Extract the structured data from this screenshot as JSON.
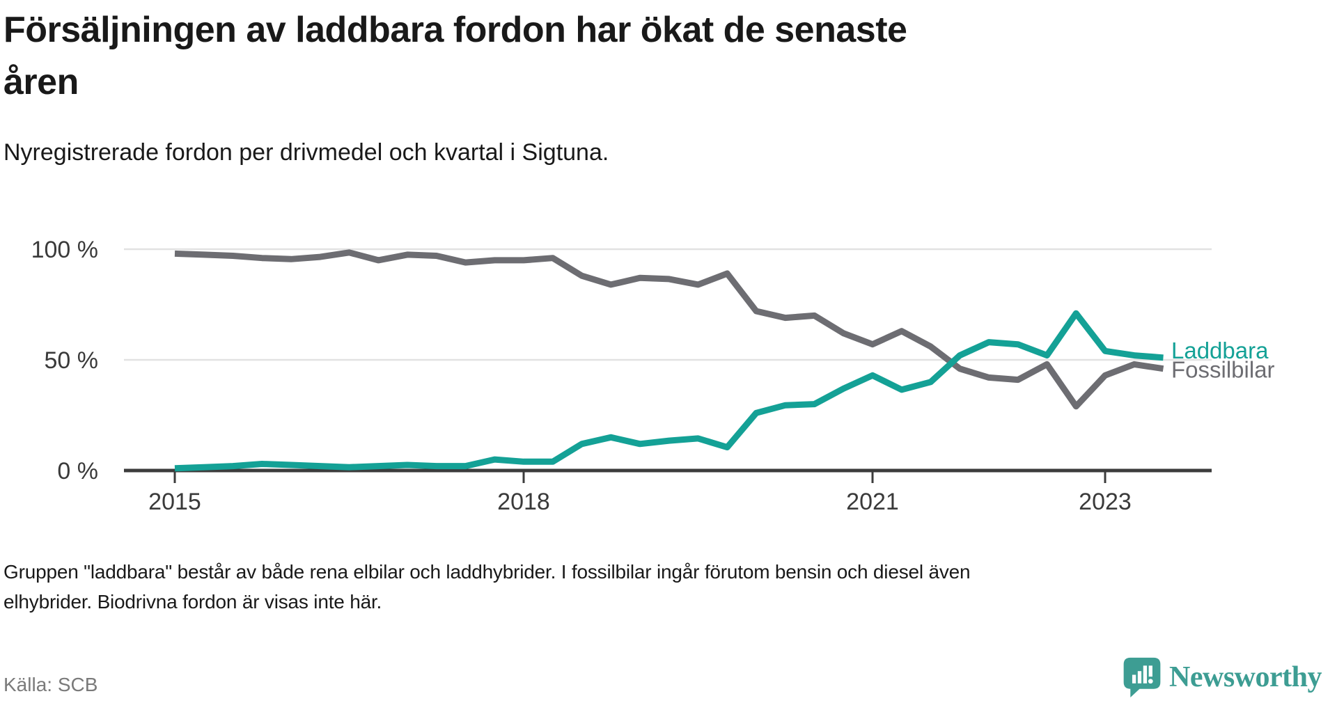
{
  "title_lines": [
    "Försäljningen av laddbara fordon har ökat de senaste",
    "åren"
  ],
  "subtitle": "Nyregistrerade fordon per drivmedel och kvartal i Sigtuna.",
  "footnote_lines": [
    "Gruppen \"laddbara\" består av både rena elbilar och laddhybrider. I fossilbilar ingår förutom bensin och diesel även",
    "elhybrider. Biodrivna fordon är visas inte här."
  ],
  "source": "Källa: SCB",
  "logo_text": "Newsworthy",
  "colors": {
    "laddbara": "#14a196",
    "fossilbilar": "#6d6d72",
    "gridline": "#e2e2e2",
    "axis": "#3c3c3c",
    "axis_text": "#3a3a3a",
    "logo_teal": "#3d9d93"
  },
  "chart_data": {
    "type": "line",
    "x_quarters": [
      "2015 Q1",
      "2015 Q2",
      "2015 Q3",
      "2015 Q4",
      "2016 Q1",
      "2016 Q2",
      "2016 Q3",
      "2016 Q4",
      "2017 Q1",
      "2017 Q2",
      "2017 Q3",
      "2017 Q4",
      "2018 Q1",
      "2018 Q2",
      "2018 Q3",
      "2018 Q4",
      "2019 Q1",
      "2019 Q2",
      "2019 Q3",
      "2019 Q4",
      "2020 Q1",
      "2020 Q2",
      "2020 Q3",
      "2020 Q4",
      "2021 Q1",
      "2021 Q2",
      "2021 Q3",
      "2021 Q4",
      "2022 Q1",
      "2022 Q2",
      "2022 Q3",
      "2022 Q4",
      "2023 Q1",
      "2023 Q2",
      "2023 Q3"
    ],
    "series": [
      {
        "name": "Laddbara",
        "color": "#14a196",
        "values": [
          1,
          1.5,
          2,
          3,
          2.5,
          2,
          1.5,
          2,
          2.5,
          2,
          2,
          5,
          4,
          4,
          12,
          15,
          12,
          13.5,
          14.5,
          10.5,
          26,
          29.5,
          30,
          37,
          43,
          36.5,
          40,
          52,
          58,
          57,
          52,
          71,
          54,
          52,
          51
        ]
      },
      {
        "name": "Fossilbilar",
        "color": "#6d6d72",
        "values": [
          98,
          97.5,
          97,
          96,
          95.5,
          96.5,
          98.5,
          95,
          97.5,
          97,
          94,
          95,
          95,
          96,
          88,
          84,
          87,
          86.5,
          84,
          89,
          72,
          69,
          70,
          62,
          57,
          63,
          56,
          46,
          42,
          41,
          48,
          29,
          43,
          48,
          46
        ]
      }
    ],
    "ylabel": "",
    "xlabel": "",
    "ylim": [
      0,
      100
    ],
    "grid": "horizontal",
    "legend_position": "end-of-line",
    "yticks": [
      {
        "value": 100,
        "label": "100 %"
      },
      {
        "value": 50,
        "label": "50 %"
      },
      {
        "value": 0,
        "label": "0 %"
      }
    ],
    "xticks": [
      {
        "year": 2015,
        "label": "2015"
      },
      {
        "year": 2018,
        "label": "2018"
      },
      {
        "year": 2021,
        "label": "2021"
      },
      {
        "year": 2023,
        "label": "2023"
      }
    ]
  }
}
